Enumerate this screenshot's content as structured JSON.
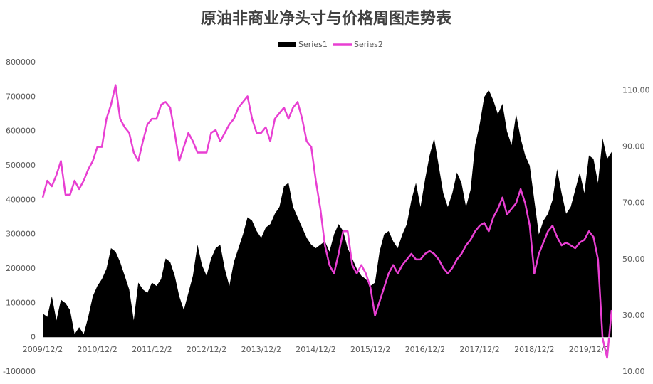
{
  "chart_data": {
    "type": "combo",
    "title": "原油非商业净头寸与价格周图走势表",
    "categories": [
      "2009/12/2",
      null,
      null,
      null,
      null,
      null,
      null,
      null,
      null,
      null,
      null,
      null,
      "2010/12/2",
      null,
      null,
      null,
      null,
      null,
      null,
      null,
      null,
      null,
      null,
      null,
      "2011/12/2",
      null,
      null,
      null,
      null,
      null,
      null,
      null,
      null,
      null,
      null,
      null,
      "2012/12/2",
      null,
      null,
      null,
      null,
      null,
      null,
      null,
      null,
      null,
      null,
      null,
      "2013/12/2",
      null,
      null,
      null,
      null,
      null,
      null,
      null,
      null,
      null,
      null,
      null,
      "2014/12/2",
      null,
      null,
      null,
      null,
      null,
      null,
      null,
      null,
      null,
      null,
      null,
      "2015/12/2",
      null,
      null,
      null,
      null,
      null,
      null,
      null,
      null,
      null,
      null,
      null,
      "2016/12/2",
      null,
      null,
      null,
      null,
      null,
      null,
      null,
      null,
      null,
      null,
      null,
      "2017/12/2",
      null,
      null,
      null,
      null,
      null,
      null,
      null,
      null,
      null,
      null,
      null,
      "2018/12/2",
      null,
      null,
      null,
      null,
      null,
      null,
      null,
      null,
      null,
      null,
      null,
      "2019/12/2",
      null,
      null,
      null,
      null,
      null
    ],
    "series": [
      {
        "name": "Series1",
        "type": "area",
        "color": "#000000",
        "values": [
          70000,
          60000,
          120000,
          50000,
          110000,
          100000,
          80000,
          10000,
          30000,
          10000,
          60000,
          120000,
          150000,
          170000,
          200000,
          260000,
          250000,
          220000,
          180000,
          140000,
          50000,
          160000,
          140000,
          130000,
          160000,
          150000,
          170000,
          230000,
          220000,
          180000,
          120000,
          80000,
          130000,
          180000,
          270000,
          210000,
          180000,
          230000,
          260000,
          270000,
          200000,
          150000,
          220000,
          260000,
          300000,
          350000,
          340000,
          310000,
          290000,
          320000,
          330000,
          360000,
          380000,
          440000,
          450000,
          380000,
          350000,
          320000,
          290000,
          270000,
          260000,
          270000,
          280000,
          250000,
          300000,
          330000,
          310000,
          260000,
          230000,
          200000,
          180000,
          170000,
          150000,
          160000,
          250000,
          300000,
          310000,
          280000,
          260000,
          300000,
          330000,
          400000,
          450000,
          380000,
          460000,
          530000,
          580000,
          500000,
          420000,
          380000,
          420000,
          480000,
          450000,
          380000,
          430000,
          560000,
          620000,
          700000,
          720000,
          690000,
          650000,
          680000,
          600000,
          560000,
          650000,
          580000,
          530000,
          500000,
          400000,
          300000,
          340000,
          360000,
          400000,
          490000,
          420000,
          360000,
          380000,
          430000,
          480000,
          420000,
          530000,
          520000,
          450000,
          580000,
          520000,
          540000
        ]
      },
      {
        "name": "Series2",
        "type": "line",
        "axis": "y2",
        "color": "#e83fd2",
        "values": [
          72,
          78,
          76,
          80,
          85,
          73,
          73,
          78,
          75,
          78,
          82,
          85,
          90,
          90,
          100,
          105,
          112,
          100,
          97,
          95,
          88,
          85,
          92,
          98,
          100,
          100,
          105,
          106,
          104,
          95,
          85,
          90,
          95,
          92,
          88,
          88,
          88,
          95,
          96,
          92,
          95,
          98,
          100,
          104,
          106,
          108,
          100,
          95,
          95,
          97,
          92,
          100,
          102,
          104,
          100,
          104,
          106,
          100,
          92,
          90,
          78,
          68,
          55,
          48,
          45,
          52,
          60,
          60,
          48,
          45,
          48,
          45,
          40,
          30,
          35,
          40,
          45,
          48,
          45,
          48,
          50,
          52,
          50,
          50,
          52,
          53,
          52,
          50,
          47,
          45,
          47,
          50,
          52,
          55,
          57,
          60,
          62,
          63,
          60,
          65,
          68,
          72,
          66,
          68,
          70,
          75,
          70,
          62,
          45,
          52,
          56,
          60,
          62,
          58,
          55,
          56,
          55,
          54,
          56,
          57,
          60,
          58,
          50,
          22,
          15,
          32
        ]
      }
    ],
    "ylim": [
      -100000,
      800000
    ],
    "yticks": [
      -100000,
      0,
      100000,
      200000,
      300000,
      400000,
      500000,
      600000,
      700000,
      800000
    ],
    "y2lim": [
      10,
      120
    ],
    "y2ticks": [
      {
        "value": 10,
        "label": "10.00"
      },
      {
        "value": 30,
        "label": "30.00"
      },
      {
        "value": 50,
        "label": "50.00"
      },
      {
        "value": 70,
        "label": "70.00"
      },
      {
        "value": 90,
        "label": "90.00"
      },
      {
        "value": 110,
        "label": "110.00"
      }
    ],
    "legend": "top"
  }
}
